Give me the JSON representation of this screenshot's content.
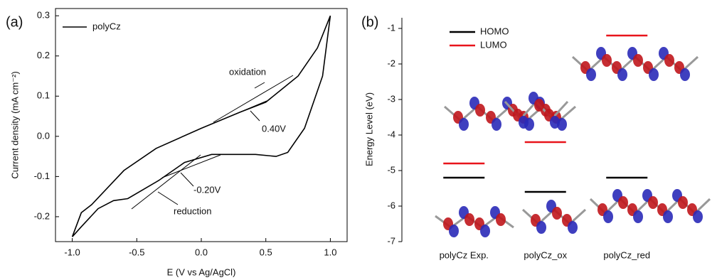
{
  "chart_data": [
    {
      "type": "line",
      "panel": "(a)",
      "x_label": "E (V vs Ag/AgCl)",
      "y_label": "Current density (mA cm⁻²)",
      "x": [
        -1.0,
        -0.93,
        -0.85,
        -0.6,
        -0.35,
        0,
        0.3,
        0.5,
        0.75,
        0.9,
        1.0,
        0.94,
        0.8,
        0.67,
        0.58,
        0.42,
        0.08,
        -0.13,
        -0.33,
        -0.57,
        -0.68,
        -0.8,
        -0.93,
        -1.0
      ],
      "series": [
        {
          "name": "polyCz",
          "color": "#000000",
          "values": [
            -0.25,
            -0.19,
            -0.17,
            -0.085,
            -0.03,
            0.02,
            0.06,
            0.085,
            0.15,
            0.22,
            0.3,
            0.15,
            0.02,
            -0.04,
            -0.05,
            -0.045,
            -0.045,
            -0.065,
            -0.11,
            -0.155,
            -0.16,
            -0.18,
            -0.225,
            -0.25
          ]
        }
      ],
      "xlim": [
        -1.13,
        1.13
      ],
      "xticks": [
        {
          "value": -1,
          "label": "-1.0"
        },
        -0.5,
        {
          "value": 0,
          "label": "0.0"
        },
        0.5,
        {
          "value": 1,
          "label": "1.0"
        }
      ],
      "ylim": [
        -0.262,
        0.318
      ],
      "yticks": [
        -0.2,
        -0.1,
        {
          "value": 0,
          "label": "0.0"
        },
        0.1,
        0.2,
        0.3
      ],
      "annotations": [
        "oxidation",
        "0.40V",
        "-0.20V",
        "reduction"
      ],
      "legend": "upper left"
    },
    {
      "type": "level",
      "panel": "(b)",
      "y_label": "Energy Level (eV)",
      "categories": [
        "polyCz Exp.",
        "polyCz_ox",
        "polyCz_red"
      ],
      "series": [
        {
          "name": "HOMO",
          "color": "#000000",
          "values": [
            -5.2,
            -5.6,
            -5.2
          ]
        },
        {
          "name": "LUMO",
          "color": "#e8141b",
          "values": [
            -4.8,
            -4.2,
            -1.2
          ]
        }
      ],
      "ylim": [
        -7,
        -0.7
      ],
      "yticks": [
        -7,
        -6,
        -5,
        -4,
        -3,
        -2,
        -1
      ],
      "legend": "upper left"
    }
  ]
}
